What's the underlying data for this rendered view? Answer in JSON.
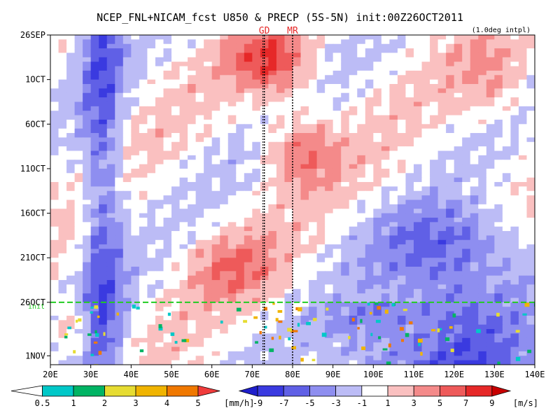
{
  "chart_data": {
    "type": "heatmap",
    "title": "NCEP_FNL+NICAM_fcst U850 & PRECP (5S-5N) init:00Z26OCT2011",
    "note": "(1.0deg intpl)",
    "x_axis": {
      "ticks": [
        "20E",
        "30E",
        "40E",
        "50E",
        "60E",
        "70E",
        "80E",
        "90E",
        "100E",
        "110E",
        "120E",
        "130E",
        "140E"
      ],
      "range_deg": [
        20,
        140
      ]
    },
    "y_axis": {
      "ticks": [
        "26SEP",
        "1OCT",
        "6OCT",
        "11OCT",
        "16OCT",
        "21OCT",
        "26OCT",
        "1NOV"
      ],
      "tick_days": [
        0,
        5,
        10,
        15,
        20,
        25,
        30,
        36
      ],
      "range_days": [
        0,
        37
      ]
    },
    "markers": [
      {
        "label": "GD",
        "lon": 73
      },
      {
        "label": "MR",
        "lon": 80
      }
    ],
    "init_line": {
      "label": "init",
      "day": 30
    },
    "u850_colorbar": {
      "ticks": [
        "-9",
        "-7",
        "-5",
        "-3",
        "-1",
        "1",
        "3",
        "5",
        "7",
        "9"
      ],
      "unit": "[m/s]",
      "colors": [
        "#1f1fcc",
        "#3a3ae0",
        "#6060e6",
        "#8e8ef0",
        "#bcbcf6",
        "#ffffff",
        "#fac0c0",
        "#f48a8a",
        "#ee5a5a",
        "#e62828",
        "#c80000"
      ]
    },
    "precip_colorbar": {
      "ticks": [
        "0.5",
        "1",
        "2",
        "3",
        "4",
        "5"
      ],
      "unit": "[mm/h]",
      "colors": [
        "#ffffff",
        "#00c8c8",
        "#00b464",
        "#e6dc32",
        "#f0b400",
        "#f07800",
        "#f03c3c"
      ]
    }
  }
}
